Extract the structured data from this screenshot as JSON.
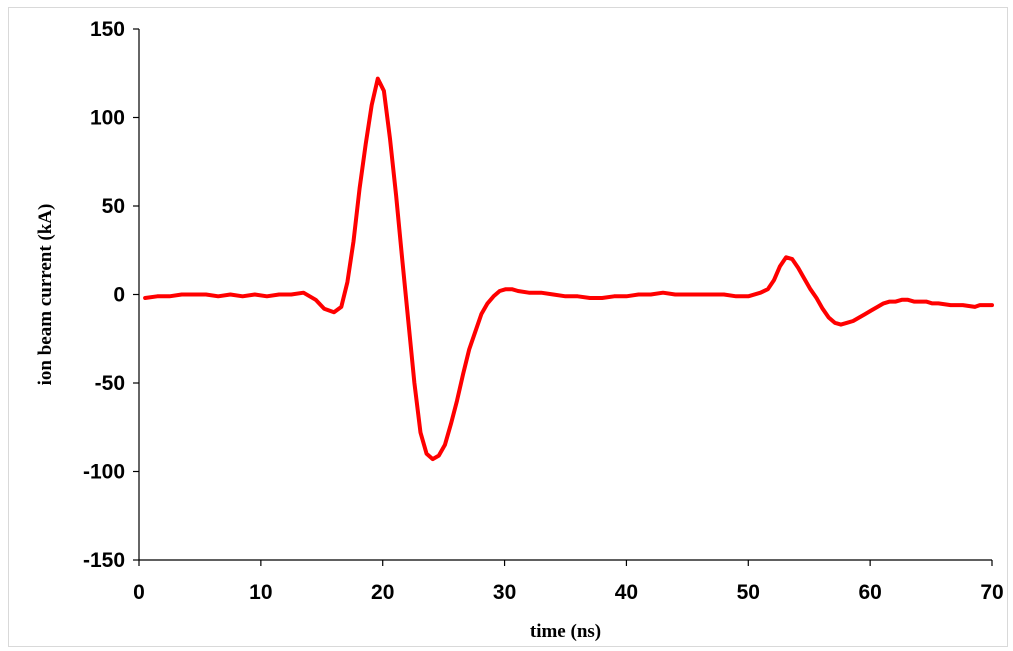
{
  "chart_data": {
    "type": "line",
    "title": "",
    "xlabel": "time (ns)",
    "ylabel": "ion beam current  (kA)",
    "xlim": [
      0,
      70
    ],
    "ylim": [
      -150,
      150
    ],
    "x_ticks": [
      0,
      10,
      20,
      30,
      40,
      50,
      60,
      70
    ],
    "y_ticks": [
      150,
      100,
      50,
      0,
      -50,
      -100,
      -150
    ],
    "x_tick_labels": [
      "0",
      "10",
      "20",
      "30",
      "40",
      "50",
      "60",
      "70"
    ],
    "y_tick_labels": [
      "150",
      "100",
      "50",
      "0",
      "-50",
      "-100",
      "-150"
    ],
    "grid": false,
    "legend": false,
    "line_color": "#ff0000",
    "series": [
      {
        "x": [
          0.5,
          1.5,
          2.5,
          3.5,
          4.5,
          5.5,
          6.5,
          7.5,
          8.5,
          9.5,
          10.5,
          11.5,
          12.5,
          13.5,
          14.5,
          15.2,
          16.0,
          16.6,
          17.1,
          17.6,
          18.1,
          18.6,
          19.1,
          19.6,
          20.1,
          20.6,
          21.1,
          21.6,
          22.1,
          22.6,
          23.1,
          23.6,
          24.1,
          24.6,
          25.1,
          25.6,
          26.1,
          26.6,
          27.1,
          27.6,
          28.1,
          28.6,
          29.1,
          29.6,
          30.1,
          30.6,
          31.1,
          32.0,
          33.0,
          34.0,
          35.0,
          36.0,
          37.0,
          38.0,
          39.0,
          40.0,
          41.0,
          42.0,
          43.0,
          44.0,
          45.0,
          46.0,
          47.0,
          48.0,
          49.0,
          50.0,
          51.0,
          51.6,
          52.1,
          52.6,
          53.1,
          53.6,
          54.1,
          54.6,
          55.1,
          55.6,
          56.1,
          56.6,
          57.1,
          57.6,
          58.1,
          58.6,
          59.1,
          59.6,
          60.1,
          60.6,
          61.1,
          61.6,
          62.1,
          62.6,
          63.1,
          63.6,
          64.1,
          64.6,
          65.1,
          65.6,
          66.6,
          67.6,
          68.6,
          69.0,
          69.5,
          70.0
        ],
        "values": [
          -2,
          -1,
          -1,
          0,
          0,
          0,
          -1,
          0,
          -1,
          0,
          -1,
          0,
          0,
          1,
          -3,
          -8,
          -10,
          -7,
          7,
          30,
          60,
          85,
          107,
          122,
          115,
          88,
          56,
          20,
          -15,
          -50,
          -78,
          -90,
          -93,
          -91,
          -85,
          -73,
          -60,
          -45,
          -31,
          -21,
          -11,
          -5,
          -1,
          2,
          3,
          3,
          2,
          1,
          1,
          0,
          -1,
          -1,
          -2,
          -2,
          -1,
          -1,
          0,
          0,
          1,
          0,
          0,
          0,
          0,
          0,
          -1,
          -1,
          1,
          3,
          8,
          16,
          21,
          20,
          15,
          9,
          3,
          -2,
          -8,
          -13,
          -16,
          -17,
          -16,
          -15,
          -13,
          -11,
          -9,
          -7,
          -5,
          -4,
          -4,
          -3,
          -3,
          -4,
          -4,
          -4,
          -5,
          -5,
          -6,
          -6,
          -7,
          -6,
          -6,
          -6
        ]
      }
    ]
  }
}
